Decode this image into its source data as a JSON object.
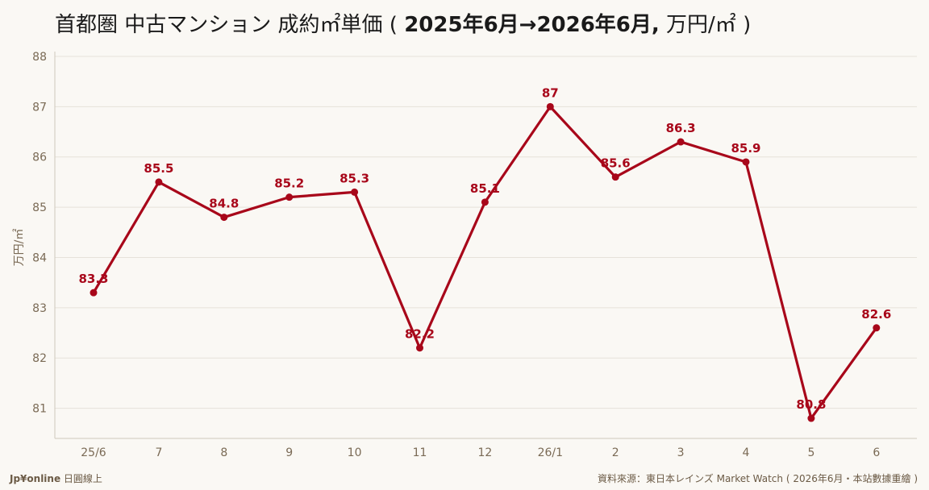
{
  "title": {
    "prefix": "首都圏 中古マンション 成約㎡単価 ( ",
    "period": "2025年6月→2026年6月,",
    "suffix": " 万円/㎡ )"
  },
  "footer": {
    "brand": "Jp¥online",
    "brand_sub": " 日圓線上",
    "source": "資料來源：東日本レインズ Market Watch ( 2026年6月・本站數據重繪 )"
  },
  "colors": {
    "line": "#a8071a",
    "grid": "#e6e2da",
    "axis_text": "#7a6a55",
    "background": "#faf8f4"
  },
  "chart_data": {
    "type": "line",
    "title": "首都圏 中古マンション 成約㎡単価 ( 2025年6月→2026年6月, 万円/㎡ )",
    "xlabel": "",
    "ylabel": "万円/㎡",
    "categories": [
      "25/6",
      "7",
      "8",
      "9",
      "10",
      "11",
      "12",
      "26/1",
      "2",
      "3",
      "4",
      "5",
      "6"
    ],
    "series": [
      {
        "values": [
          83.3,
          85.5,
          84.8,
          85.2,
          85.3,
          82.2,
          85.1,
          87.0,
          85.6,
          86.3,
          85.9,
          80.8,
          82.6
        ],
        "labels": [
          "83.3",
          "85.5",
          "84.8",
          "85.2",
          "85.3",
          "82.2",
          "85.1",
          "87",
          "85.6",
          "86.3",
          "85.9",
          "80.8",
          "82.6"
        ]
      }
    ],
    "yticks": [
      81,
      82,
      83,
      84,
      85,
      86,
      87,
      88
    ],
    "ylim": [
      80.4,
      88.0
    ],
    "grid": true,
    "legend": "none"
  }
}
